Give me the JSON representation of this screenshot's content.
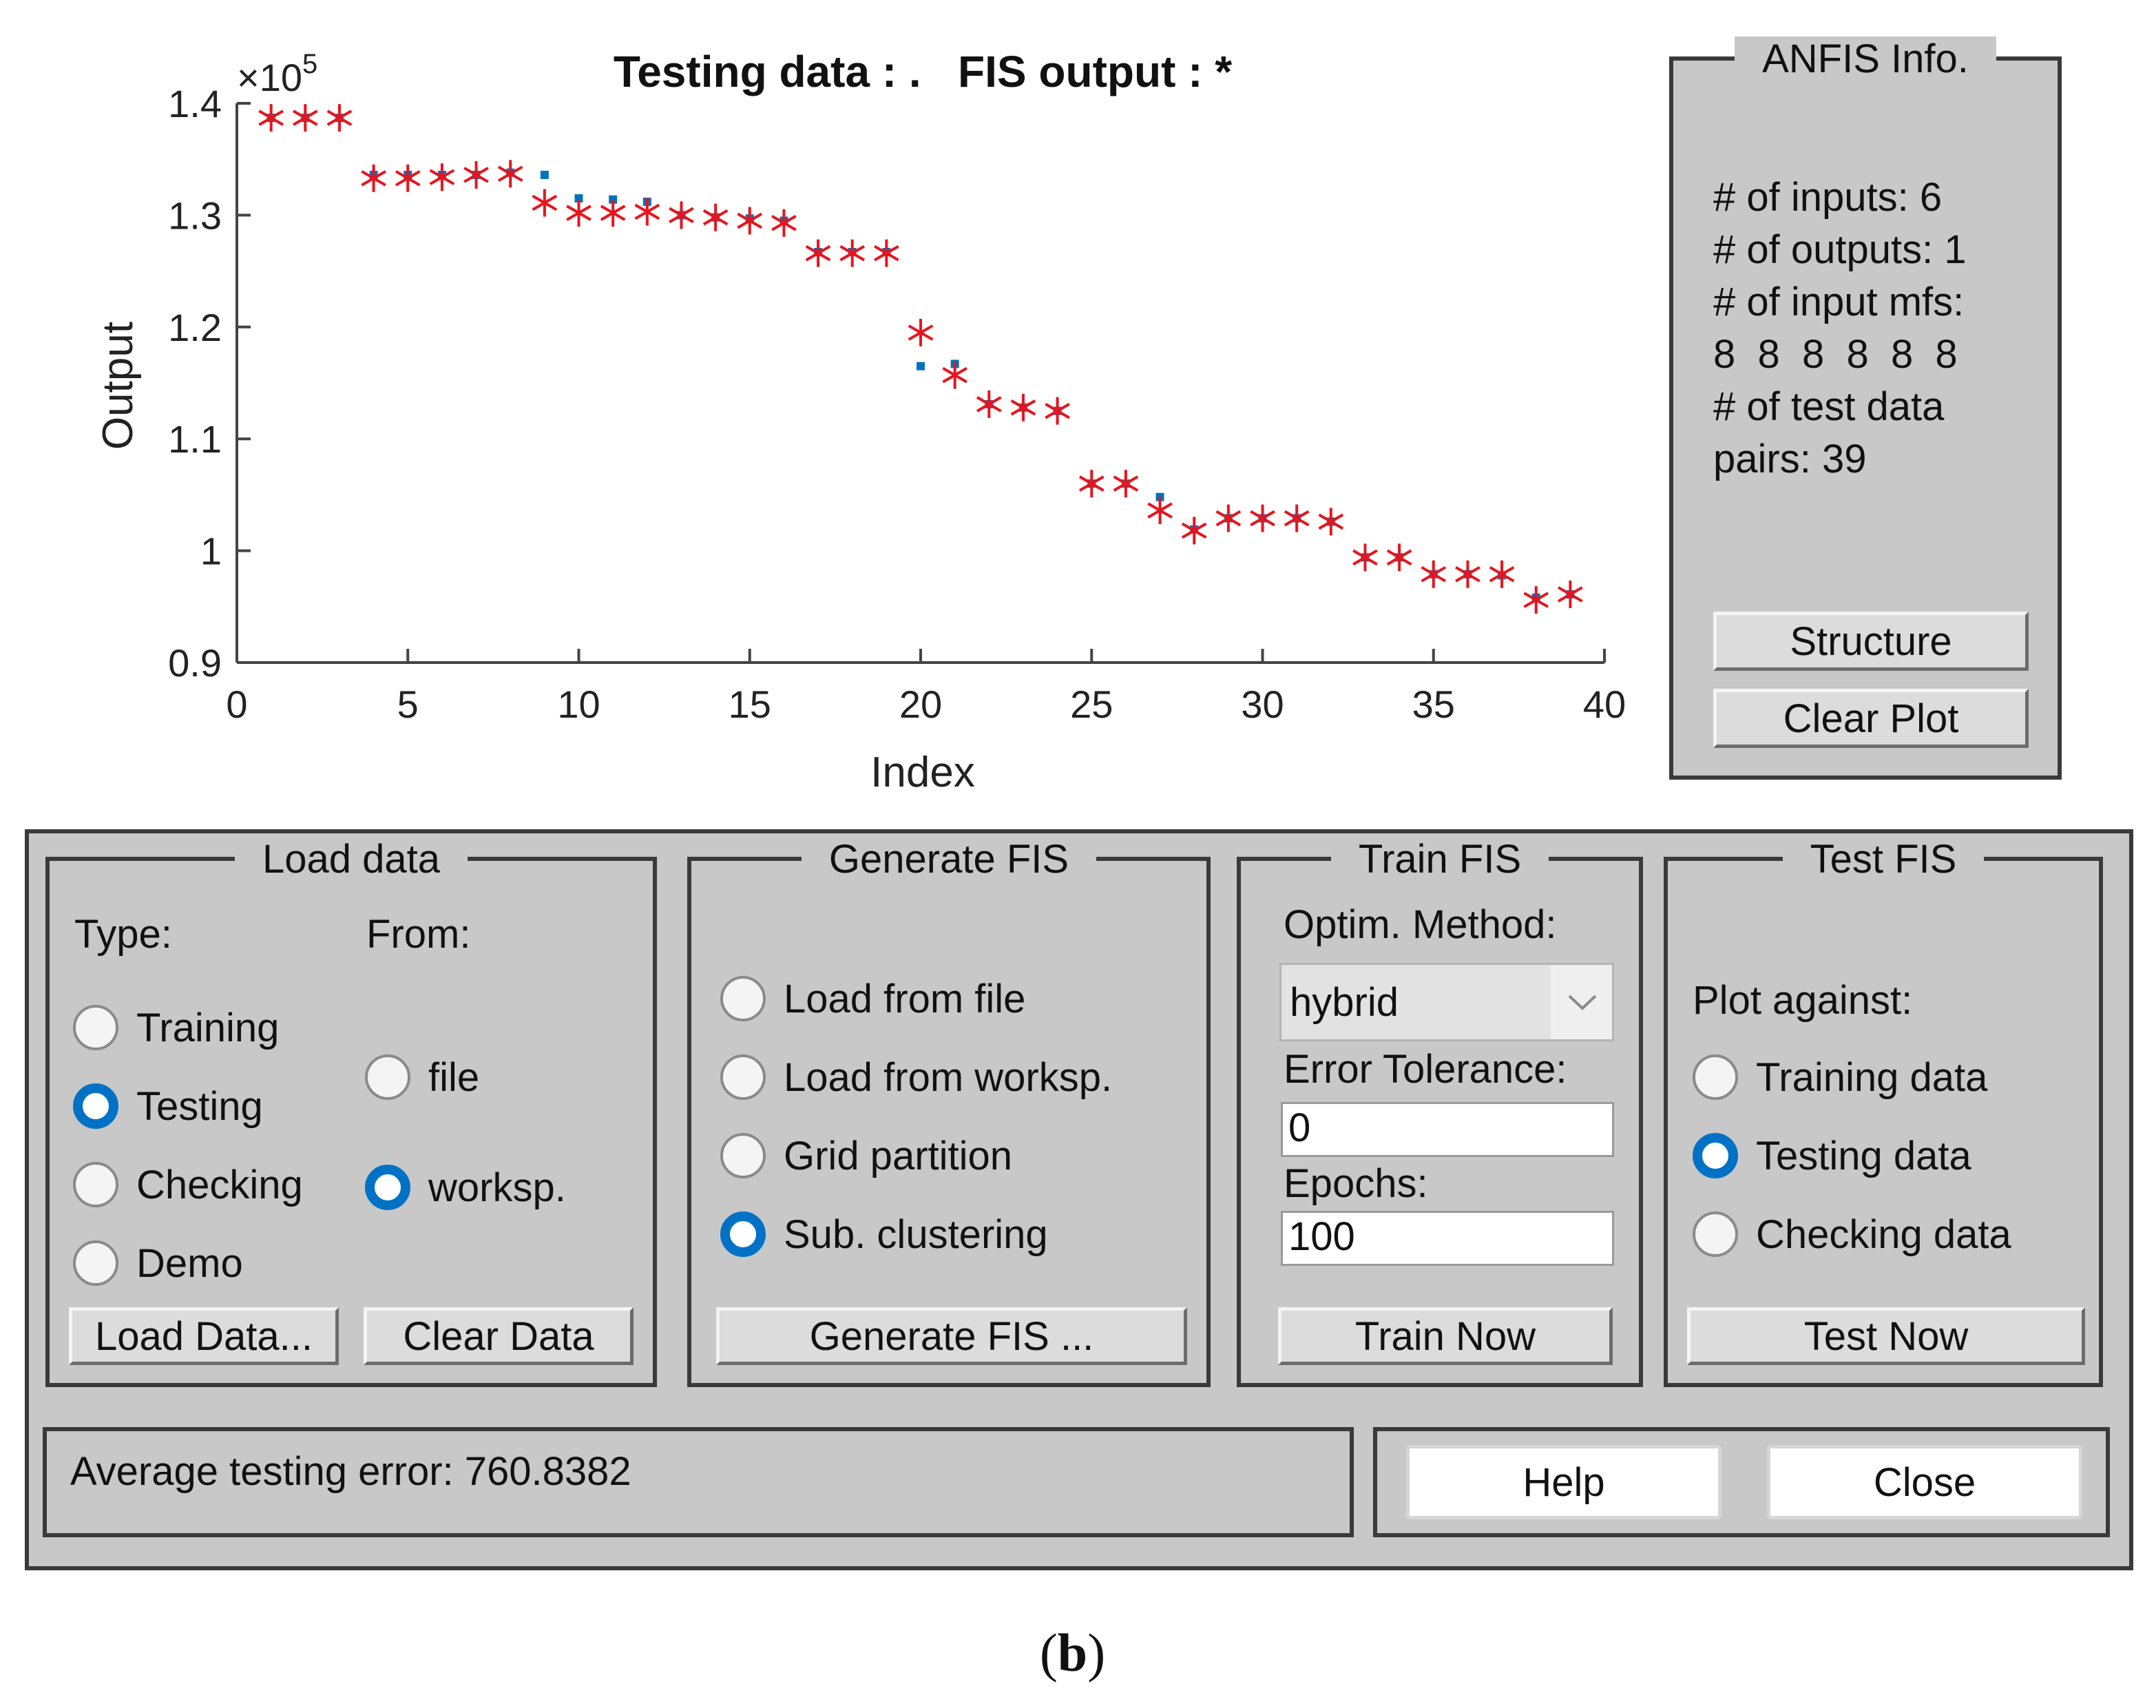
{
  "plot": {
    "title": "Testing data : .   FIS output : *",
    "xlabel": "Index",
    "ylabel": "Output",
    "exponent_prefix": "×10",
    "exponent_power": "5"
  },
  "chart_data": {
    "type": "scatter",
    "title": "Testing data : .   FIS output : *",
    "xlabel": "Index",
    "ylabel": "Output",
    "y_scale_factor": "×10^5",
    "xlim": [
      0,
      40
    ],
    "ylim": [
      0.9,
      1.4
    ],
    "xticks": [
      0,
      5,
      10,
      15,
      20,
      25,
      30,
      35,
      40
    ],
    "yticks": [
      0.9,
      1,
      1.1,
      1.2,
      1.3,
      1.4
    ],
    "grid": false,
    "series": [
      {
        "marker": "dot",
        "color": "#0072bd",
        "x": [
          1,
          2,
          3,
          4,
          5,
          6,
          7,
          8,
          9,
          10,
          11,
          12,
          13,
          14,
          15,
          16,
          17,
          18,
          19,
          20,
          21,
          22,
          23,
          24,
          25,
          26,
          27,
          28,
          29,
          30,
          31,
          32,
          33,
          34,
          35,
          36,
          37,
          38,
          39
        ],
        "y": [
          1.387,
          1.387,
          1.387,
          1.336,
          1.336,
          1.336,
          1.336,
          1.338,
          1.336,
          1.315,
          1.314,
          1.312,
          1.3,
          1.298,
          1.297,
          1.295,
          1.267,
          1.267,
          1.267,
          1.165,
          1.167,
          1.131,
          1.128,
          1.125,
          1.06,
          1.06,
          1.048,
          1.019,
          1.029,
          1.029,
          1.029,
          1.026,
          0.994,
          0.994,
          0.979,
          0.979,
          0.978,
          0.958,
          0.961
        ]
      },
      {
        "marker": "star",
        "color": "#e8141c",
        "x": [
          1,
          2,
          3,
          4,
          5,
          6,
          7,
          8,
          9,
          10,
          11,
          12,
          13,
          14,
          15,
          16,
          17,
          18,
          19,
          20,
          21,
          22,
          23,
          24,
          25,
          26,
          27,
          28,
          29,
          30,
          31,
          32,
          33,
          34,
          35,
          36,
          37,
          38,
          39
        ],
        "y": [
          1.387,
          1.387,
          1.387,
          1.333,
          1.333,
          1.334,
          1.336,
          1.337,
          1.311,
          1.302,
          1.302,
          1.303,
          1.3,
          1.298,
          1.295,
          1.293,
          1.266,
          1.266,
          1.266,
          1.195,
          1.157,
          1.131,
          1.128,
          1.125,
          1.06,
          1.06,
          1.036,
          1.018,
          1.029,
          1.029,
          1.029,
          1.026,
          0.994,
          0.994,
          0.979,
          0.979,
          0.979,
          0.956,
          0.961
        ]
      }
    ]
  },
  "anfis_info": {
    "title": "ANFIS Info.",
    "lines": [
      "# of inputs: 6",
      "# of outputs: 1",
      "# of input mfs:",
      "8  8  8  8  8  8",
      "# of test data",
      "pairs: 39"
    ],
    "structure_button": "Structure",
    "clear_plot_button": "Clear Plot"
  },
  "load_data": {
    "title": "Load data",
    "type_label": "Type:",
    "from_label": "From:",
    "type_options": [
      {
        "label": "Training",
        "selected": false
      },
      {
        "label": "Testing",
        "selected": true
      },
      {
        "label": "Checking",
        "selected": false
      },
      {
        "label": "Demo",
        "selected": false
      }
    ],
    "from_options": [
      {
        "label": "file",
        "selected": false
      },
      {
        "label": "worksp.",
        "selected": true
      }
    ],
    "load_button": "Load Data...",
    "clear_button": "Clear Data"
  },
  "generate_fis": {
    "title": "Generate FIS",
    "options": [
      {
        "label": "Load from file",
        "selected": false
      },
      {
        "label": "Load from worksp.",
        "selected": false
      },
      {
        "label": "Grid partition",
        "selected": false
      },
      {
        "label": "Sub. clustering",
        "selected": true
      }
    ],
    "button": "Generate FIS ..."
  },
  "train_fis": {
    "title": "Train FIS",
    "method_label": "Optim. Method:",
    "method_value": "hybrid",
    "tolerance_label": "Error Tolerance:",
    "tolerance_value": "0",
    "epochs_label": "Epochs:",
    "epochs_value": "100",
    "button": "Train Now"
  },
  "test_fis": {
    "title": "Test FIS",
    "plot_against_label": "Plot against:",
    "options": [
      {
        "label": "Training data",
        "selected": false
      },
      {
        "label": "Testing data",
        "selected": true
      },
      {
        "label": "Checking data",
        "selected": false
      }
    ],
    "button": "Test Now"
  },
  "status": {
    "text": "Average testing error: 760.8382"
  },
  "footer": {
    "help_button": "Help",
    "close_button": "Close"
  },
  "caption": {
    "open": "(",
    "letter": "b",
    "close": ")"
  },
  "colors": {
    "panel_bg": "#c8c8c8",
    "radio_selected": "#0072c6",
    "testing_marker": "#0072bd",
    "fis_marker": "#e8141c"
  }
}
